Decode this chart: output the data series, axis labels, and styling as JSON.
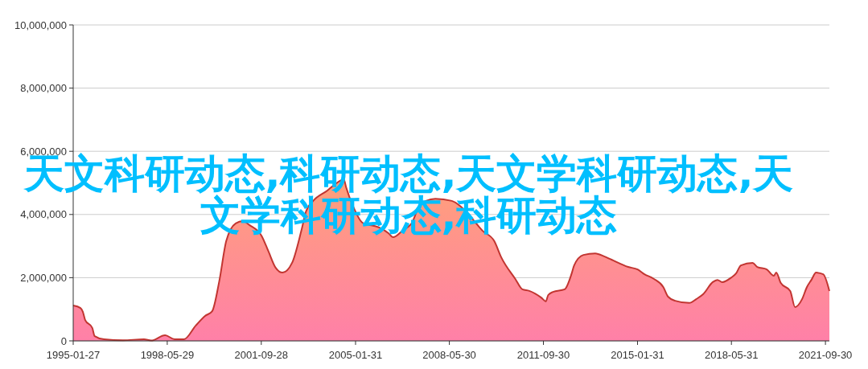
{
  "chart_data": {
    "type": "area",
    "title": "天文科研动态,科研动态,天文学科研动态,天文学科研动态,科研动态",
    "x": [
      "1995-01-27",
      "1995-05",
      "1995-06",
      "1995-07",
      "1995-10",
      "1995-11",
      "1996-03",
      "1996-11",
      "1997-08",
      "1997-11",
      "1998-05",
      "1998-09",
      "1999-01",
      "1999-06",
      "1999-10",
      "2000-01",
      "2000-04",
      "2000-07",
      "2000-11",
      "2001-02",
      "2001-05",
      "2001-10",
      "2002-01",
      "2002-04",
      "2002-07",
      "2002-11",
      "2003-03",
      "2003-05",
      "2003-08",
      "2004-02",
      "2004-05",
      "2004-09",
      "2004-10",
      "2005-01",
      "2005-05",
      "2005-12",
      "2006-04",
      "2006-06",
      "2006-10",
      "2007-02",
      "2007-05",
      "2007-08",
      "2007-12",
      "2008-07",
      "2008-12",
      "2009-04",
      "2009-08",
      "2010-01",
      "2010-04",
      "2010-10",
      "2011-01",
      "2011-04",
      "2011-09",
      "2011-11",
      "2011-12",
      "2012-02",
      "2012-07",
      "2012-10",
      "2012-11",
      "2013-03",
      "2013-08",
      "2013-12",
      "2014-03",
      "2014-10",
      "2015-02",
      "2015-05",
      "2015-09",
      "2016-01",
      "2016-03",
      "2016-06",
      "2016-12",
      "2017-03",
      "2017-06",
      "2017-10",
      "2017-12",
      "2018-02",
      "2018-06",
      "2018-08",
      "2018-10",
      "2019-03",
      "2019-05",
      "2019-09",
      "2019-12",
      "2020-01",
      "2020-03",
      "2020-07",
      "2020-09",
      "2020-12",
      "2021-02",
      "2021-04",
      "2021-06",
      "2021-09",
      "2021-11-20"
    ],
    "series": [
      {
        "color": "#c23531",
        "values": [
          1120000,
          1040000,
          920000,
          660000,
          410000,
          150000,
          50000,
          20000,
          50000,
          10000,
          180000,
          50000,
          50000,
          480000,
          790000,
          940000,
          1880000,
          3160000,
          3720000,
          3790000,
          3660000,
          3330000,
          2820000,
          2320000,
          2160000,
          2470000,
          3490000,
          4100000,
          4430000,
          4760000,
          4940000,
          5110000,
          4860000,
          4250000,
          3740000,
          3590000,
          3410000,
          3280000,
          3490000,
          3740000,
          4250000,
          4430000,
          4500000,
          4430000,
          4170000,
          3840000,
          3490000,
          3160000,
          2650000,
          1960000,
          1630000,
          1580000,
          1370000,
          1250000,
          1450000,
          1550000,
          1630000,
          2140000,
          2390000,
          2720000,
          2770000,
          2670000,
          2570000,
          2340000,
          2260000,
          2110000,
          1960000,
          1700000,
          1400000,
          1270000,
          1200000,
          1320000,
          1480000,
          1860000,
          1930000,
          1860000,
          2010000,
          2140000,
          2390000,
          2470000,
          2340000,
          2260000,
          2060000,
          2160000,
          1830000,
          1580000,
          1070000,
          1320000,
          1700000,
          1930000,
          2160000,
          2110000,
          1580000
        ]
      }
    ],
    "xlim": [
      "1995-01-27",
      "2021-11-20"
    ],
    "xticks": [
      "1995-01-27",
      "1998-05-29",
      "2001-09-28",
      "2005-01-31",
      "2008-05-30",
      "2011-09-30",
      "2015-01-31",
      "2018-05-31",
      "2021-09-30"
    ],
    "ylim": [
      0,
      10000000
    ],
    "yticks": [
      {
        "value": 0,
        "label": "0"
      },
      {
        "value": 2000000,
        "label": "2,000,000"
      },
      {
        "value": 4000000,
        "label": "4,000,000"
      },
      {
        "value": 6000000,
        "label": "6,000,000"
      },
      {
        "value": 8000000,
        "label": "8,000,000"
      },
      {
        "value": 10000000,
        "label": "10,000,000"
      }
    ],
    "grid": "y"
  }
}
